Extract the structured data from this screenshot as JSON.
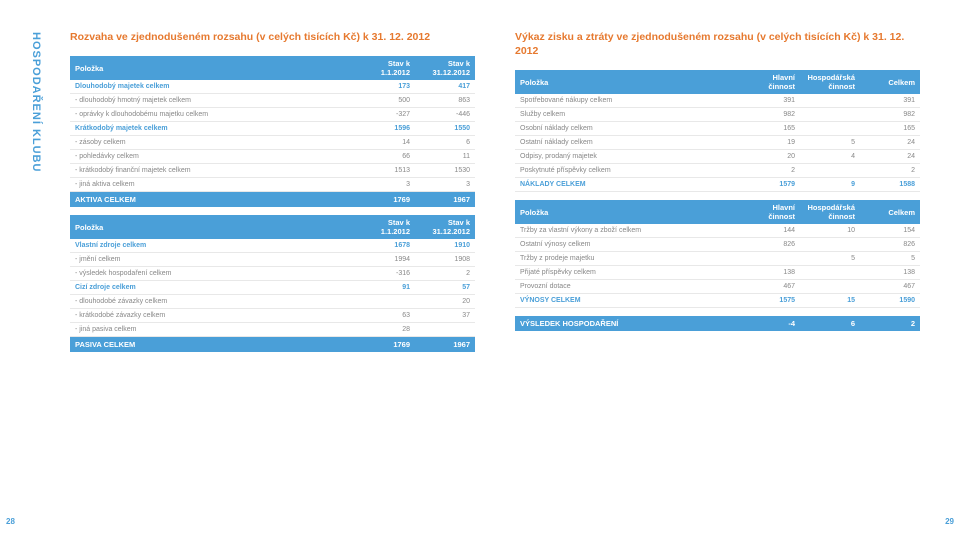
{
  "sideLabel": "HOSPODAŘENÍ KLUBU",
  "pageLeft": "28",
  "pageRight": "29",
  "left": {
    "title": "Rozvaha ve zjednodušeném rozsahu (v celých tisících Kč)\nk 31. 12. 2012",
    "aktiva": {
      "headers": [
        "Položka",
        "Stav k 1.1.2012",
        "Stav k 31.12.2012"
      ],
      "rows": [
        {
          "label": "Dlouhodobý majetek celkem",
          "c1": "173",
          "c2": "417",
          "bold": true
        },
        {
          "label": "- dlouhodobý hmotný majetek celkem",
          "c1": "500",
          "c2": "863"
        },
        {
          "label": "- oprávky k dlouhodobému majetku celkem",
          "c1": "-327",
          "c2": "-446"
        },
        {
          "label": "Krátkodobý majetek celkem",
          "c1": "1596",
          "c2": "1550",
          "bold": true
        },
        {
          "label": "- zásoby celkem",
          "c1": "14",
          "c2": "6"
        },
        {
          "label": "- pohledávky celkem",
          "c1": "66",
          "c2": "11"
        },
        {
          "label": "- krátkodobý finanční majetek celkem",
          "c1": "1513",
          "c2": "1530"
        },
        {
          "label": "- jiná aktiva celkem",
          "c1": "3",
          "c2": "3"
        }
      ],
      "total": {
        "label": "AKTIVA CELKEM",
        "c1": "1769",
        "c2": "1967"
      }
    },
    "pasiva": {
      "headers": [
        "Položka",
        "Stav k 1.1.2012",
        "Stav k 31.12.2012"
      ],
      "rows": [
        {
          "label": "Vlastní zdroje celkem",
          "c1": "1678",
          "c2": "1910",
          "bold": true
        },
        {
          "label": "- jmění celkem",
          "c1": "1994",
          "c2": "1908"
        },
        {
          "label": "- výsledek hospodaření celkem",
          "c1": "-316",
          "c2": "2"
        },
        {
          "label": "Cizí zdroje celkem",
          "c1": "91",
          "c2": "57",
          "bold": true
        },
        {
          "label": "- dlouhodobé závazky celkem",
          "c1": "",
          "c2": "20"
        },
        {
          "label": "- krátkodobé závazky celkem",
          "c1": "63",
          "c2": "37"
        },
        {
          "label": "- jiná pasiva celkem",
          "c1": "28",
          "c2": ""
        }
      ],
      "total": {
        "label": "PASIVA CELKEM",
        "c1": "1769",
        "c2": "1967"
      }
    }
  },
  "right": {
    "title": "Výkaz zisku a ztráty ve zjednodušeném rozsahu (v celých tisících Kč)\nk 31. 12. 2012",
    "naklady": {
      "headers": [
        "Položka",
        "Hlavní činnost",
        "Hospodářská činnost",
        "Celkem"
      ],
      "rows": [
        {
          "label": "Spotřebované nákupy celkem",
          "c1": "391",
          "c2": "",
          "c3": "391"
        },
        {
          "label": "Služby celkem",
          "c1": "982",
          "c2": "",
          "c3": "982"
        },
        {
          "label": "Osobní náklady celkem",
          "c1": "165",
          "c2": "",
          "c3": "165"
        },
        {
          "label": "Ostatní náklady celkem",
          "c1": "19",
          "c2": "5",
          "c3": "24"
        },
        {
          "label": "Odpisy, prodaný majetek",
          "c1": "20",
          "c2": "4",
          "c3": "24"
        },
        {
          "label": "Poskytnuté příspěvky celkem",
          "c1": "2",
          "c2": "",
          "c3": "2"
        }
      ],
      "total": {
        "label": "NÁKLADY CELKEM",
        "c1": "1579",
        "c2": "9",
        "c3": "1588"
      }
    },
    "vynosy": {
      "headers": [
        "Položka",
        "Hlavní činnost",
        "Hospodářská činnost",
        "Celkem"
      ],
      "rows": [
        {
          "label": "Tržby za vlastní výkony a zboží celkem",
          "c1": "144",
          "c2": "10",
          "c3": "154"
        },
        {
          "label": "Ostatní výnosy celkem",
          "c1": "826",
          "c2": "",
          "c3": "826"
        },
        {
          "label": "Tržby z prodeje majetku",
          "c1": "",
          "c2": "5",
          "c3": "5"
        },
        {
          "label": "Přijaté příspěvky celkem",
          "c1": "138",
          "c2": "",
          "c3": "138"
        },
        {
          "label": "Provozní dotace",
          "c1": "467",
          "c2": "",
          "c3": "467"
        }
      ],
      "total": {
        "label": "VÝNOSY CELKEM",
        "c1": "1575",
        "c2": "15",
        "c3": "1590"
      }
    },
    "result": {
      "label": "VÝSLEDEK HOSPODAŘENÍ",
      "c1": "-4",
      "c2": "6",
      "c3": "2"
    }
  }
}
